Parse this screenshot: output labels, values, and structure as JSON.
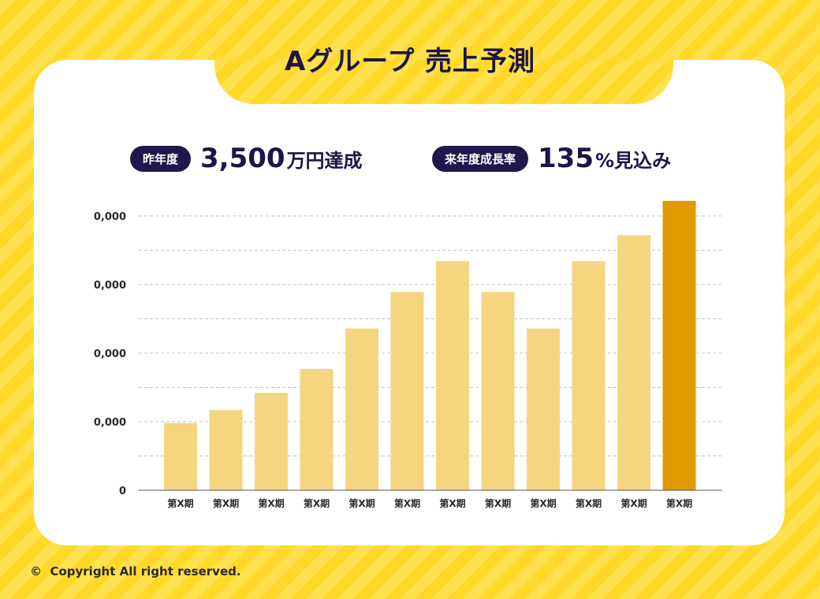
{
  "header": {
    "title": "Aグループ 売上予測"
  },
  "stats": [
    {
      "label": "昨年度",
      "value": "3,500",
      "unit": "万円達成"
    },
    {
      "label": "来年度成長率",
      "value": "135",
      "unit": "%見込み"
    }
  ],
  "footer": {
    "icon": "copyright-icon",
    "text": "Copyright All right reserved."
  },
  "colors": {
    "bar": "#f5d580",
    "highlight": "#df9a00",
    "text": "#1d1547"
  },
  "chart_data": {
    "type": "bar",
    "title": "",
    "xlabel": "",
    "ylabel": "",
    "categories": [
      "第X期",
      "第X期",
      "第X期",
      "第X期",
      "第X期",
      "第X期",
      "第X期",
      "第X期",
      "第X期",
      "第X期",
      "第X期",
      "第X期"
    ],
    "values": [
      0.98,
      1.17,
      1.42,
      1.77,
      2.36,
      2.89,
      3.34,
      2.89,
      2.36,
      3.34,
      3.72,
      4.22
    ],
    "highlight_index": 11,
    "ylim": [
      0,
      4
    ],
    "yticks": [
      0,
      1,
      2,
      3,
      4
    ],
    "ytick_labels": [
      "0",
      "0,000",
      "0,000",
      "0,000",
      "0,000"
    ],
    "grid": true
  }
}
